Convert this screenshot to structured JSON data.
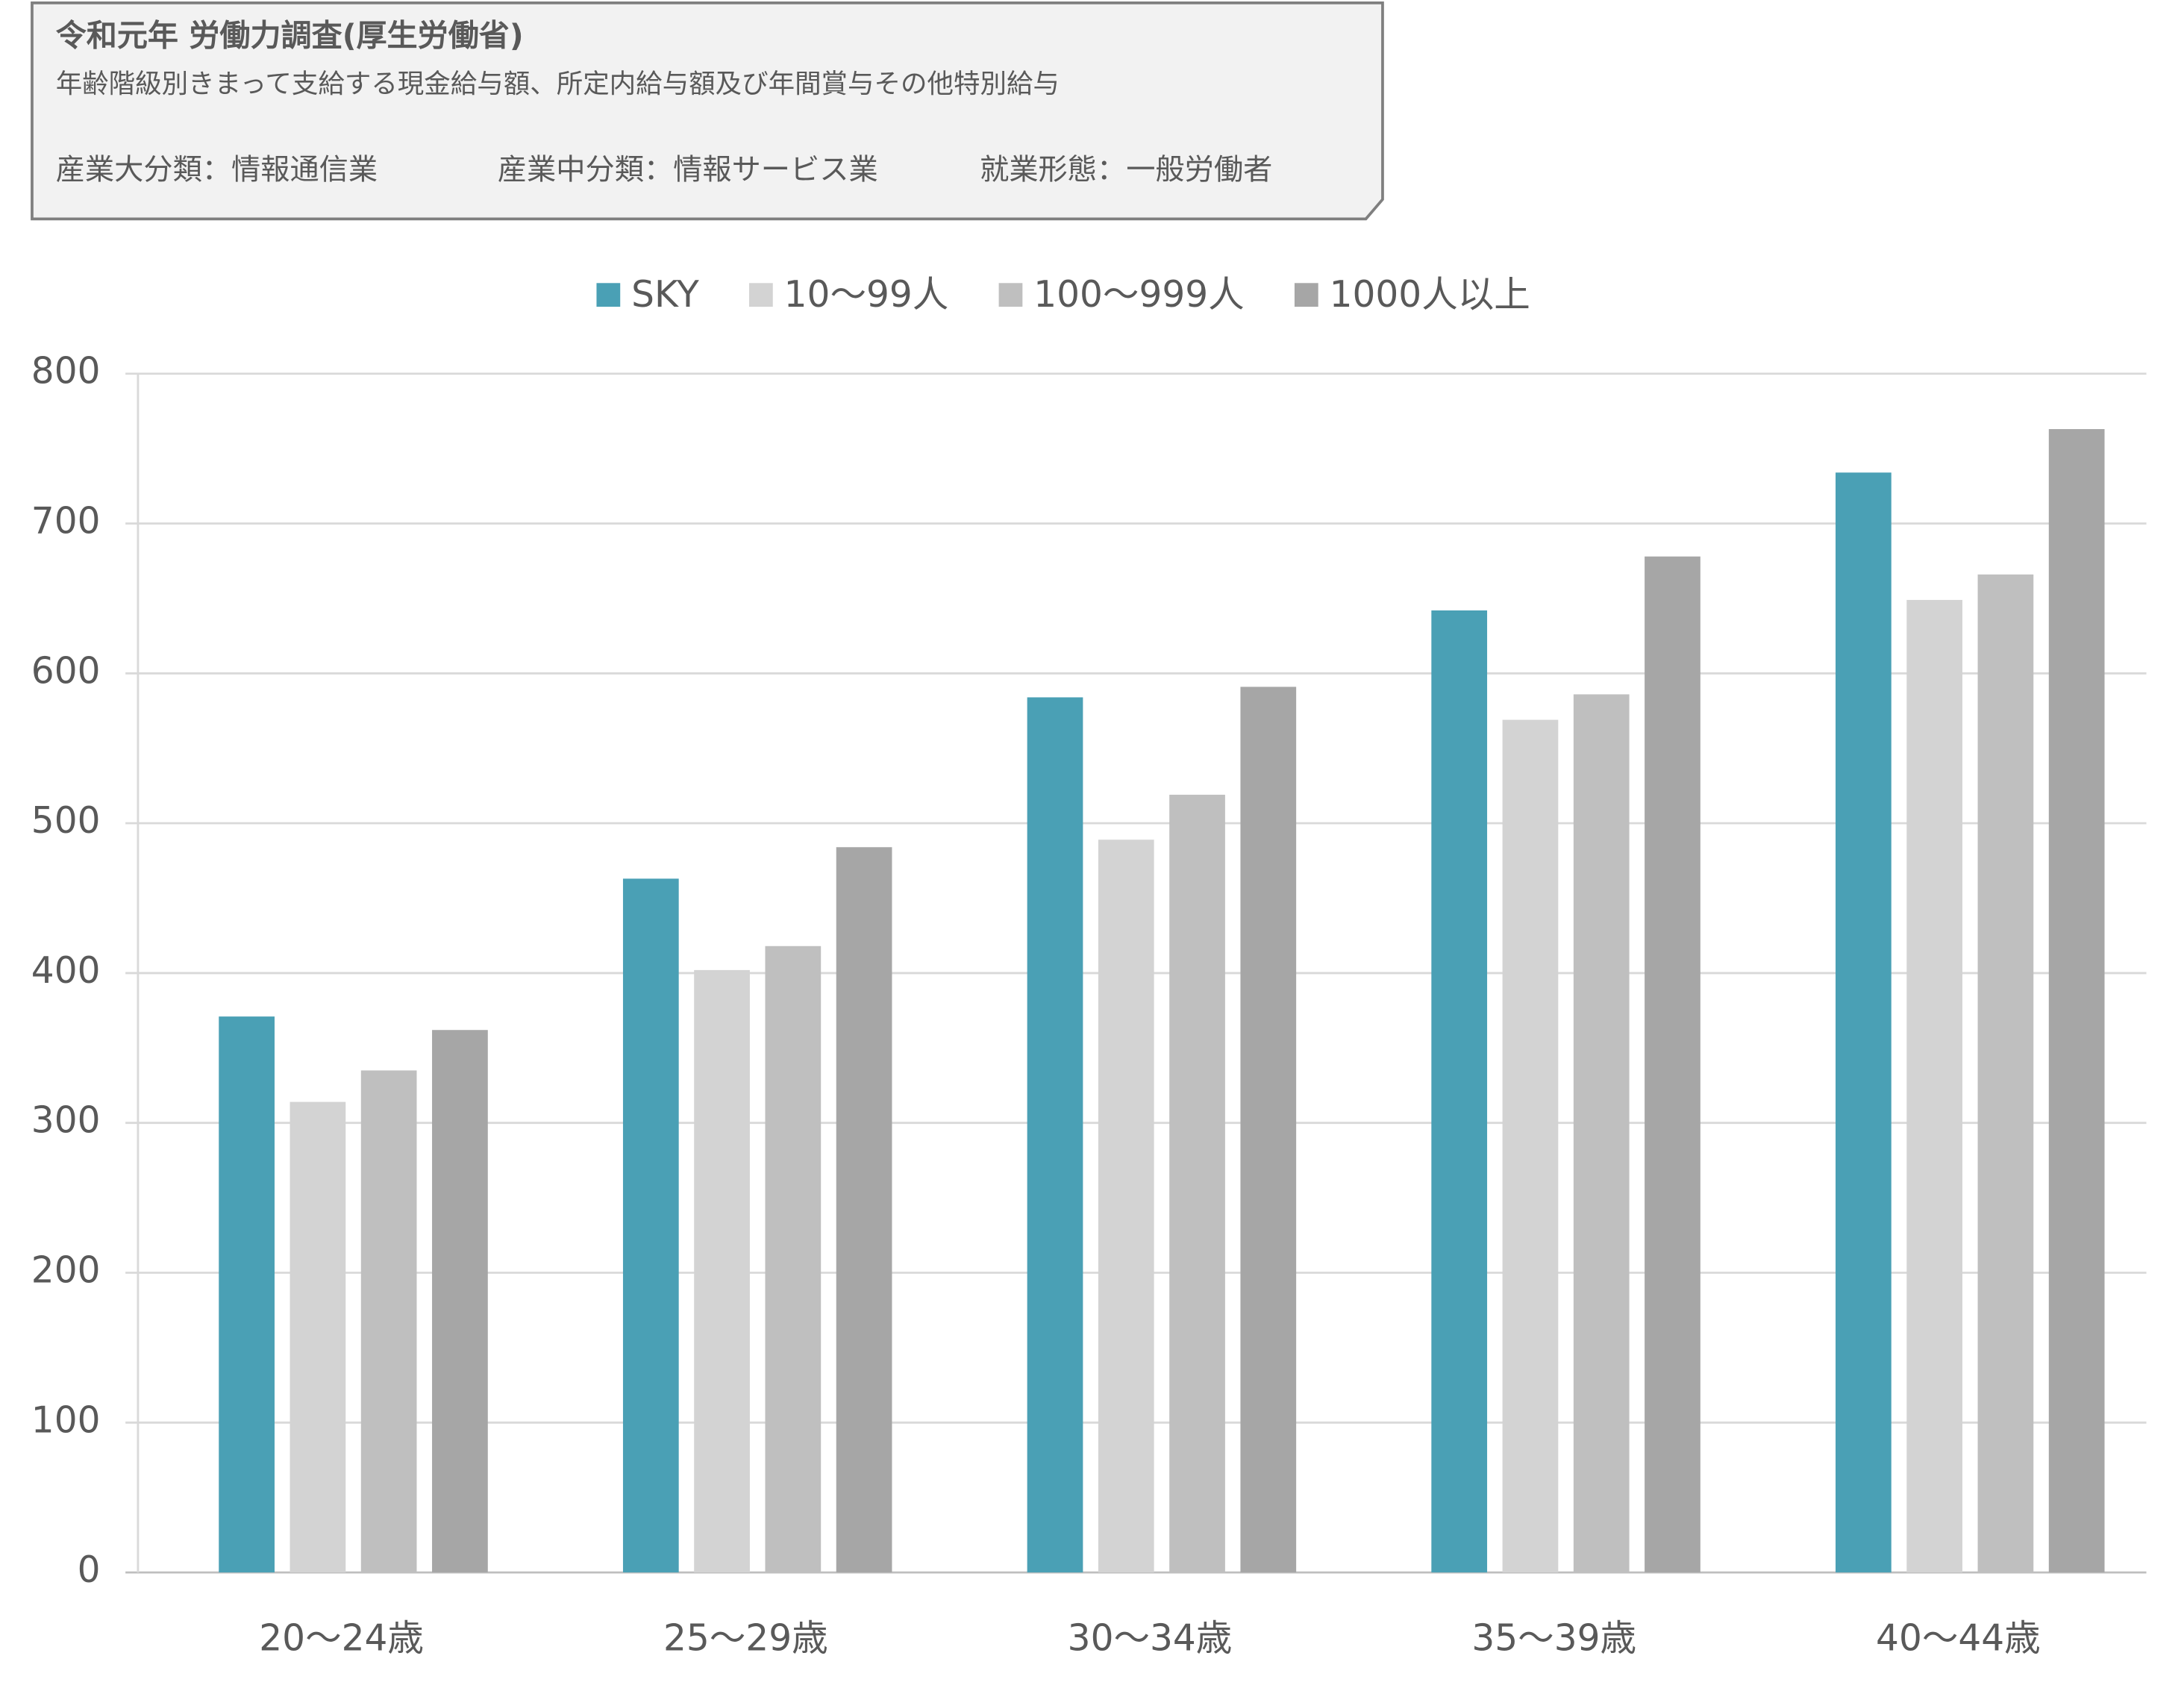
{
  "chart_data": {
    "type": "bar",
    "title": "令和元年 労働力調査(厚生労働省)",
    "subtitle": "年齢階級別きまって支給する現金給与額、所定内給与額及び年間賞与その他特別給与",
    "notes": [
      "産業大分類：情報通信業",
      "産業中分類：情報サービス業",
      "就業形態：一般労働者"
    ],
    "categories": [
      "20～24歳",
      "25～29歳",
      "30～34歳",
      "35～39歳",
      "40～44歳"
    ],
    "series": [
      {
        "name": "SKY",
        "color": "#4aa0b5",
        "values": [
          371,
          463,
          584,
          642,
          734
        ]
      },
      {
        "name": "10～99人",
        "color": "#d3d3d3",
        "values": [
          314,
          402,
          489,
          569,
          649
        ]
      },
      {
        "name": "100～999人",
        "color": "#bfbfbf",
        "values": [
          335,
          418,
          519,
          586,
          666
        ]
      },
      {
        "name": "1000人以上",
        "color": "#a6a6a6",
        "values": [
          362,
          484,
          591,
          678,
          763
        ]
      }
    ],
    "ylim": [
      0,
      800
    ],
    "yticks": [
      0,
      100,
      200,
      300,
      400,
      500,
      600,
      700,
      800
    ],
    "grid": true,
    "legend": "top"
  }
}
